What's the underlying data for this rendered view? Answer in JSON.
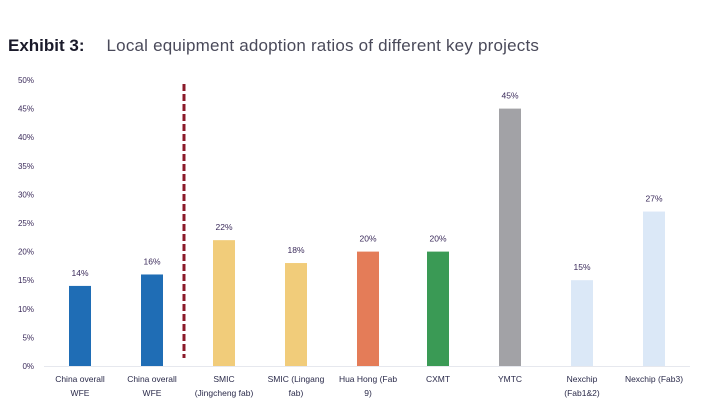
{
  "chart_data": {
    "type": "bar",
    "title_prefix": "Exhibit 3:",
    "title": "Local equipment adoption ratios of different key projects",
    "xlabel": "",
    "ylabel": "",
    "ylim": [
      0,
      50
    ],
    "yticks": [
      "0%",
      "5%",
      "10%",
      "15%",
      "20%",
      "25%",
      "30%",
      "35%",
      "40%",
      "45%",
      "50%"
    ],
    "ytick_values": [
      0,
      5,
      10,
      15,
      20,
      25,
      30,
      35,
      40,
      45,
      50
    ],
    "grid": false,
    "legend": "none",
    "categories": [
      [
        "China overall",
        "WFE"
      ],
      [
        "China overall",
        "WFE"
      ],
      [
        "SMIC",
        "(Jingcheng fab)"
      ],
      [
        "SMIC (Lingang",
        "fab)"
      ],
      [
        "Hua Hong (Fab",
        "9)"
      ],
      [
        "CXMT"
      ],
      [
        "YMTC"
      ],
      [
        "Nexchip",
        "(Fab1&2)"
      ],
      [
        "Nexchip (Fab3)"
      ]
    ],
    "values": [
      14,
      16,
      22,
      18,
      20,
      20,
      45,
      15,
      27
    ],
    "data_labels": [
      "14%",
      "16%",
      "22%",
      "18%",
      "20%",
      "20%",
      "45%",
      "15%",
      "27%"
    ],
    "colors": [
      "#1f6db5",
      "#1f6db5",
      "#f1cc7a",
      "#f1cc7a",
      "#e47c58",
      "#3a9a55",
      "#a2a2a6",
      "#dbe8f7",
      "#dbe8f7"
    ],
    "divider": {
      "after_index": 1,
      "color": "#8b1a2a",
      "style": "dashed"
    }
  }
}
